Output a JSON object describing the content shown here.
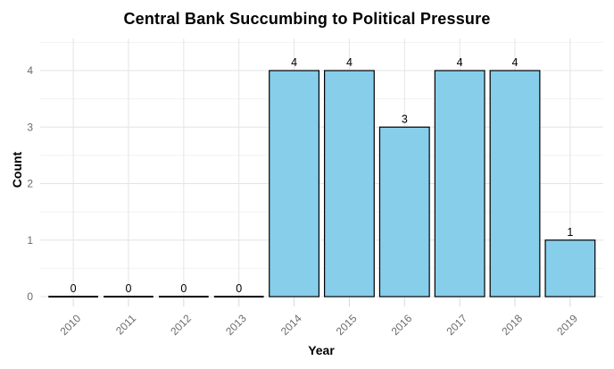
{
  "chart_data": {
    "type": "bar",
    "title": "Central Bank Succumbing to Political Pressure",
    "xlabel": "Year",
    "ylabel": "Count",
    "categories": [
      "2010",
      "2011",
      "2012",
      "2013",
      "2014",
      "2015",
      "2016",
      "2017",
      "2018",
      "2019"
    ],
    "values": [
      0,
      0,
      0,
      0,
      4,
      4,
      3,
      4,
      4,
      1
    ],
    "bar_labels": [
      "0",
      "0",
      "0",
      "0",
      "4",
      "4",
      "3",
      "4",
      "4",
      "1"
    ],
    "y_ticks": [
      0,
      1,
      2,
      3,
      4
    ],
    "ylim": [
      0,
      4.58
    ],
    "grid": "horizontal major+minor, vertical major at categories",
    "legend": "none",
    "colors": {
      "background": "#FFFFFF",
      "bar_fill": "#87CEEB",
      "bar_border": "#000000",
      "zero_bar_line": "#000000",
      "value_label": "#000000",
      "axis_text": "#6B6B6B",
      "grid_major": "#E4E4E4",
      "grid_minor": "#F2F2F2",
      "tick_mark": "#D8D8D8",
      "title_text": "#000000"
    }
  }
}
